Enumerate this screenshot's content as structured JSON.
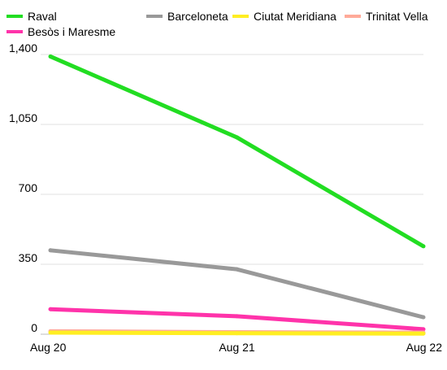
{
  "chart_data": {
    "type": "line",
    "categories": [
      "Aug 20",
      "Aug 21",
      "Aug 22"
    ],
    "series": [
      {
        "name": "Raval",
        "values": [
          1390,
          985,
          440
        ],
        "color": "#22dd22"
      },
      {
        "name": "Barceloneta",
        "values": [
          420,
          325,
          85
        ],
        "color": "#999999"
      },
      {
        "name": "Ciutat Meridiana",
        "values": [
          8,
          5,
          3
        ],
        "color": "#ffee22"
      },
      {
        "name": "Trinitat Vella",
        "values": [
          15,
          10,
          8
        ],
        "color": "#ffaa99"
      },
      {
        "name": "Besòs i Maresme",
        "values": [
          125,
          90,
          25
        ],
        "color": "#ff33aa"
      }
    ],
    "y_ticks": [
      0,
      350,
      700,
      1050,
      1400
    ],
    "y_tick_labels": [
      "0",
      "350",
      "700",
      "1,050",
      "1,400"
    ],
    "ylim": [
      0,
      1400
    ],
    "grid": true,
    "legend_position": "top"
  }
}
